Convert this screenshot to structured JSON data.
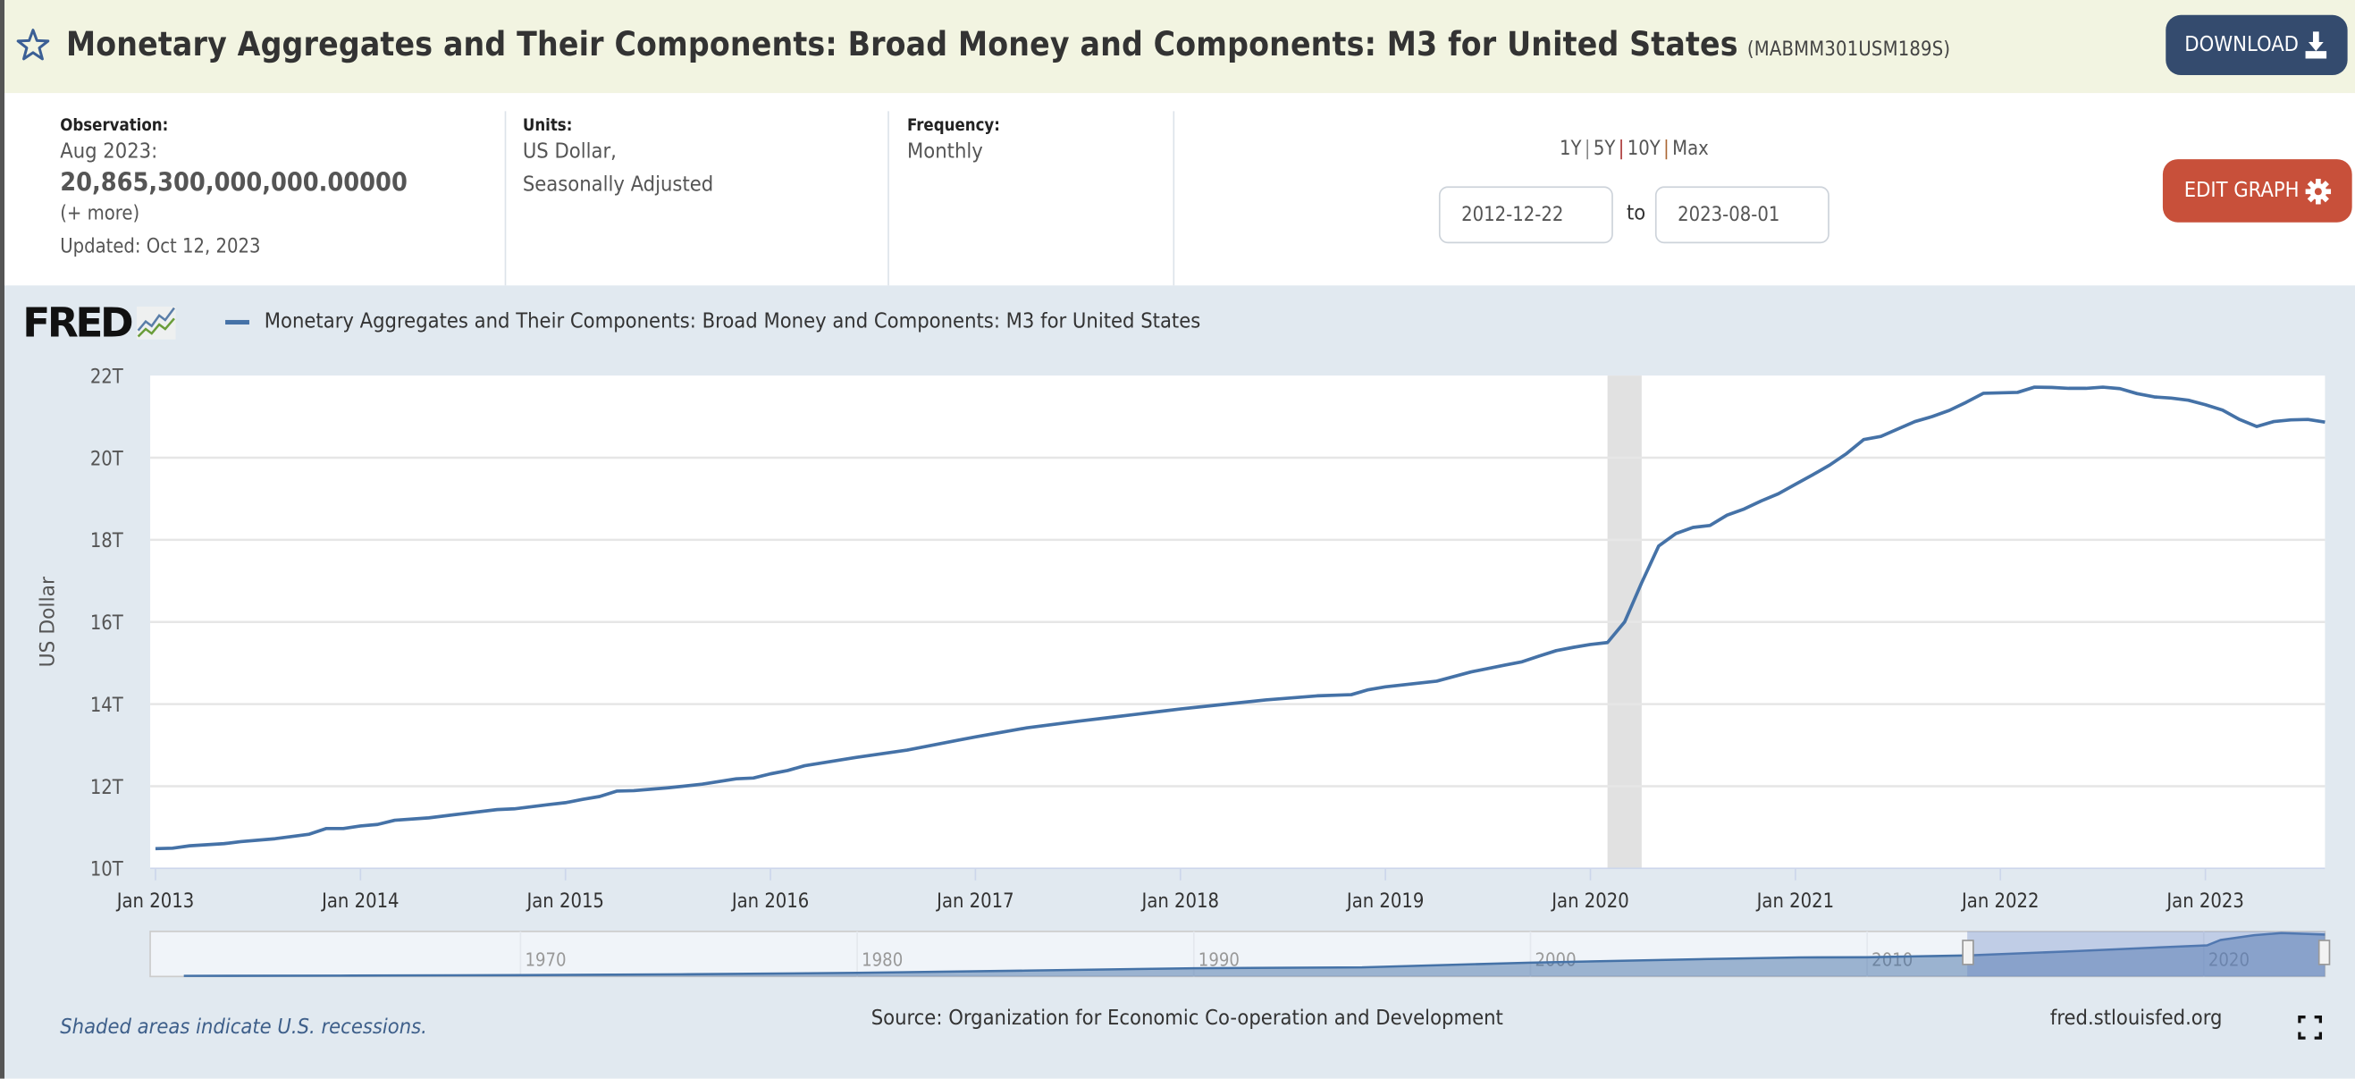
{
  "header": {
    "title": "Monetary Aggregates and Their Components: Broad Money and Components: M3 for United States",
    "series_id": "(MABMM301USM189S)",
    "download_label": "DOWNLOAD",
    "star_icon": "star-outline-icon"
  },
  "info": {
    "observation_label": "Observation:",
    "observation_date": "Aug 2023:",
    "observation_value": "20,865,300,000,000.00000",
    "more_link": "(+ more)",
    "updated": "Updated: Oct 12, 2023",
    "units_label": "Units:",
    "units_line1": "US Dollar,",
    "units_line2": "Seasonally Adjusted",
    "frequency_label": "Frequency:",
    "frequency_value": "Monthly"
  },
  "range": {
    "options": [
      "1Y",
      "5Y",
      "10Y",
      "Max"
    ],
    "start": "2012-12-22",
    "to_label": "to",
    "end": "2023-08-01",
    "edit_graph_label": "EDIT GRAPH"
  },
  "colors": {
    "accent_download": "#344b6e",
    "accent_edit": "#c8503a",
    "series": "#4572a7",
    "recession": "#e1e1e1"
  },
  "chart_data": {
    "type": "line",
    "logo": "FRED",
    "legend": "Monetary Aggregates and Their Components: Broad Money and Components: M3 for United States",
    "ylabel": "US Dollar",
    "ylim": [
      10,
      22
    ],
    "y_unit": "T",
    "yticks": [
      "10T",
      "12T",
      "14T",
      "16T",
      "18T",
      "20T",
      "22T"
    ],
    "xlim": [
      "2012-12-22",
      "2023-08-01"
    ],
    "xticks": [
      "Jan 2013",
      "Jan 2014",
      "Jan 2015",
      "Jan 2016",
      "Jan 2017",
      "Jan 2018",
      "Jan 2019",
      "Jan 2020",
      "Jan 2021",
      "Jan 2022",
      "Jan 2023"
    ],
    "grid": true,
    "recessions": [
      [
        "2020-02-01",
        "2020-04-01"
      ]
    ],
    "series": [
      {
        "name": "Monetary Aggregates and Their Components: Broad Money and Components: M3 for United States",
        "points": [
          [
            "2013-01",
            10.48
          ],
          [
            "2013-02",
            10.49
          ],
          [
            "2013-03",
            10.55
          ],
          [
            "2013-05",
            10.6
          ],
          [
            "2013-06",
            10.65
          ],
          [
            "2013-08",
            10.72
          ],
          [
            "2013-10",
            10.83
          ],
          [
            "2013-11",
            10.97
          ],
          [
            "2013-12",
            10.97
          ],
          [
            "2014-01",
            11.03
          ],
          [
            "2014-02",
            11.07
          ],
          [
            "2014-03",
            11.17
          ],
          [
            "2014-05",
            11.23
          ],
          [
            "2014-07",
            11.33
          ],
          [
            "2014-09",
            11.43
          ],
          [
            "2014-10",
            11.45
          ],
          [
            "2014-12",
            11.55
          ],
          [
            "2015-01",
            11.6
          ],
          [
            "2015-02",
            11.68
          ],
          [
            "2015-03",
            11.75
          ],
          [
            "2015-04",
            11.88
          ],
          [
            "2015-05",
            11.89
          ],
          [
            "2015-07",
            11.96
          ],
          [
            "2015-09",
            12.05
          ],
          [
            "2015-11",
            12.18
          ],
          [
            "2015-12",
            12.2
          ],
          [
            "2016-01",
            12.3
          ],
          [
            "2016-02",
            12.38
          ],
          [
            "2016-03",
            12.5
          ],
          [
            "2016-06",
            12.7
          ],
          [
            "2016-09",
            12.88
          ],
          [
            "2016-12",
            13.12
          ],
          [
            "2017-01",
            13.2
          ],
          [
            "2017-04",
            13.42
          ],
          [
            "2017-07",
            13.58
          ],
          [
            "2017-09",
            13.68
          ],
          [
            "2017-12",
            13.83
          ],
          [
            "2018-01",
            13.88
          ],
          [
            "2018-03",
            13.97
          ],
          [
            "2018-06",
            14.1
          ],
          [
            "2018-09",
            14.2
          ],
          [
            "2018-11",
            14.23
          ],
          [
            "2018-12",
            14.35
          ],
          [
            "2019-01",
            14.42
          ],
          [
            "2019-04",
            14.56
          ],
          [
            "2019-06",
            14.78
          ],
          [
            "2019-08",
            14.95
          ],
          [
            "2019-09",
            15.03
          ],
          [
            "2019-10",
            15.17
          ],
          [
            "2019-11",
            15.3
          ],
          [
            "2019-12",
            15.38
          ],
          [
            "2020-01",
            15.45
          ],
          [
            "2020-02",
            15.5
          ],
          [
            "2020-03",
            16.0
          ],
          [
            "2020-04",
            16.95
          ],
          [
            "2020-05",
            17.85
          ],
          [
            "2020-06",
            18.15
          ],
          [
            "2020-07",
            18.3
          ],
          [
            "2020-08",
            18.35
          ],
          [
            "2020-09",
            18.6
          ],
          [
            "2020-10",
            18.75
          ],
          [
            "2020-11",
            18.95
          ],
          [
            "2020-12",
            19.12
          ],
          [
            "2021-01",
            19.35
          ],
          [
            "2021-02",
            19.58
          ],
          [
            "2021-03",
            19.82
          ],
          [
            "2021-04",
            20.1
          ],
          [
            "2021-05",
            20.44
          ],
          [
            "2021-06",
            20.52
          ],
          [
            "2021-07",
            20.7
          ],
          [
            "2021-08",
            20.88
          ],
          [
            "2021-09",
            21.0
          ],
          [
            "2021-10",
            21.15
          ],
          [
            "2021-11",
            21.35
          ],
          [
            "2021-12",
            21.57
          ],
          [
            "2022-01",
            21.58
          ],
          [
            "2022-02",
            21.59
          ],
          [
            "2022-03",
            21.72
          ],
          [
            "2022-04",
            21.71
          ],
          [
            "2022-05",
            21.69
          ],
          [
            "2022-06",
            21.69
          ],
          [
            "2022-07",
            21.72
          ],
          [
            "2022-08",
            21.68
          ],
          [
            "2022-09",
            21.56
          ],
          [
            "2022-10",
            21.48
          ],
          [
            "2022-11",
            21.45
          ],
          [
            "2022-12",
            21.4
          ],
          [
            "2023-01",
            21.29
          ],
          [
            "2023-02",
            21.16
          ],
          [
            "2023-03",
            20.93
          ],
          [
            "2023-04",
            20.76
          ],
          [
            "2023-05",
            20.88
          ],
          [
            "2023-06",
            20.92
          ],
          [
            "2023-07",
            20.93
          ],
          [
            "2023-08",
            20.865
          ]
        ]
      }
    ],
    "navigator": {
      "xticks": [
        "1970",
        "1980",
        "1990",
        "2000",
        "2010",
        "2020"
      ],
      "range": [
        1959,
        2023.6
      ],
      "selected": [
        "2012-12-22",
        "2023-08-01"
      ],
      "points": [
        [
          1960,
          0.3
        ],
        [
          1965,
          0.45
        ],
        [
          1970,
          0.65
        ],
        [
          1975,
          1.1
        ],
        [
          1980,
          1.8
        ],
        [
          1985,
          2.9
        ],
        [
          1990,
          4.1
        ],
        [
          1995,
          4.6
        ],
        [
          2000,
          6.9
        ],
        [
          2005,
          8.6
        ],
        [
          2008,
          9.5
        ],
        [
          2010,
          9.6
        ],
        [
          2013,
          10.5
        ],
        [
          2016,
          12.5
        ],
        [
          2019,
          14.8
        ],
        [
          2020.1,
          15.5
        ],
        [
          2020.5,
          18.2
        ],
        [
          2021.5,
          20.6
        ],
        [
          2022.3,
          21.7
        ],
        [
          2023,
          21.3
        ],
        [
          2023.6,
          20.9
        ]
      ]
    }
  },
  "footer": {
    "recession_note": "Shaded areas indicate U.S. recessions.",
    "source": "Source: Organization for Economic Co-operation and Development",
    "site": "fred.stlouisfed.org"
  }
}
